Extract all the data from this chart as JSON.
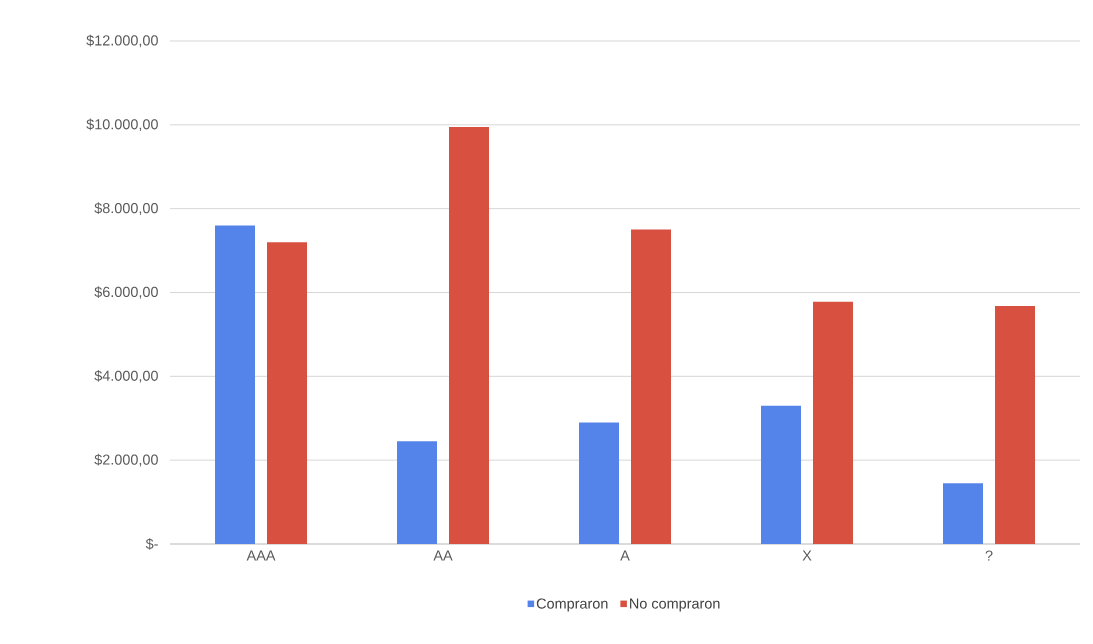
{
  "chart_data": {
    "type": "bar",
    "categories": [
      "AAA",
      "AA",
      "A",
      "X",
      "?"
    ],
    "series": [
      {
        "name": "Compraron",
        "color": "#5484ea",
        "values": [
          7600,
          2450,
          2900,
          3300,
          1450
        ]
      },
      {
        "name": "No compraron",
        "color": "#d85140",
        "values": [
          7200,
          9950,
          7500,
          5780,
          5680
        ]
      }
    ],
    "ylim": [
      0,
      12000
    ],
    "yticks": [
      {
        "value": 0,
        "label": "$-"
      },
      {
        "value": 2000,
        "label": "$2.000,00"
      },
      {
        "value": 4000,
        "label": "$4.000,00"
      },
      {
        "value": 6000,
        "label": "$6.000,00"
      },
      {
        "value": 8000,
        "label": "$8.000,00"
      },
      {
        "value": 10000,
        "label": "$10.000,00"
      },
      {
        "value": 12000,
        "label": "$12.000,00"
      }
    ],
    "grid": "y",
    "legend": "bottom"
  }
}
